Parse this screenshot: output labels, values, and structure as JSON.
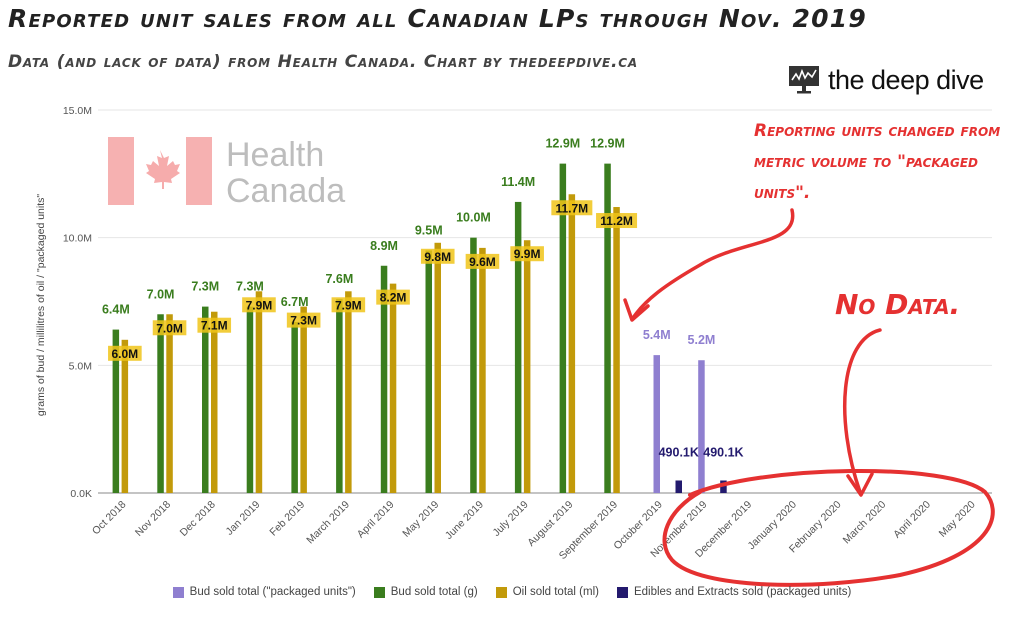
{
  "title": "Reported unit sales from all Canadian LPs through Nov. 2019",
  "subtitle": "Data (and lack of data) from Health Canada. Chart by thedeepdive.ca",
  "logo": {
    "text": "the deep dive",
    "icon": "monitor-chart-icon"
  },
  "watermark": {
    "line1": "Health",
    "line2": "Canada",
    "icon": "maple-leaf-icon"
  },
  "annotations": {
    "reporting_change": "Reporting units changed from metric volume to \"packaged units\".",
    "no_data": "No Data."
  },
  "colors": {
    "packaged_units": "#8f7fd0",
    "bud_g": "#3a7d1e",
    "oil_ml": "#c29a0a",
    "edibles": "#231a6e",
    "annotation": "#e53131",
    "grid": "#e6e6e6"
  },
  "chart_data": {
    "type": "bar",
    "title": "Reported unit sales from all Canadian LPs through Nov. 2019",
    "xlabel": "",
    "ylabel": "grams of bud / millilitres of oil / \"packaged units\"",
    "ylim": [
      0,
      15000000
    ],
    "yticks": [
      "0.0K",
      "5.0M",
      "10.0M",
      "15.0M"
    ],
    "grid": true,
    "legend_position": "bottom",
    "categories": [
      "Oct 2018",
      "Nov 2018",
      "Dec 2018",
      "Jan 2019",
      "Feb 2019",
      "March 2019",
      "April 2019",
      "May 2019",
      "June 2019",
      "July 2019",
      "August 2019",
      "September 2019",
      "October 2019",
      "November 2019",
      "December 2019",
      "January 2020",
      "February 2020",
      "March 2020",
      "April 2020",
      "May 2020"
    ],
    "series": [
      {
        "name": "Bud sold total (\"packaged units\")",
        "values": [
          null,
          null,
          null,
          null,
          null,
          null,
          null,
          null,
          null,
          null,
          null,
          null,
          5400000,
          5200000,
          null,
          null,
          null,
          null,
          null,
          null
        ],
        "labels": [
          "",
          "",
          "",
          "",
          "",
          "",
          "",
          "",
          "",
          "",
          "",
          "",
          "5.4M",
          "5.2M",
          "",
          "",
          "",
          "",
          "",
          ""
        ]
      },
      {
        "name": "Bud sold total (g)",
        "values": [
          6400000,
          7000000,
          7300000,
          7300000,
          6700000,
          7600000,
          8900000,
          9500000,
          10000000,
          11400000,
          12900000,
          12900000,
          null,
          null,
          null,
          null,
          null,
          null,
          null,
          null
        ],
        "labels": [
          "6.4M",
          "7.0M",
          "7.3M",
          "7.3M",
          "6.7M",
          "7.6M",
          "8.9M",
          "9.5M",
          "10.0M",
          "11.4M",
          "12.9M",
          "12.9M",
          "",
          "",
          "",
          "",
          "",
          "",
          "",
          ""
        ]
      },
      {
        "name": "Oil sold total (ml)",
        "values": [
          6000000,
          7000000,
          7100000,
          7900000,
          7300000,
          7900000,
          8200000,
          9800000,
          9600000,
          9900000,
          11700000,
          11200000,
          null,
          null,
          null,
          null,
          null,
          null,
          null,
          null
        ],
        "labels": [
          "6.0M",
          "7.0M",
          "7.1M",
          "7.9M",
          "7.3M",
          "7.9M",
          "8.2M",
          "9.8M",
          "9.6M",
          "9.9M",
          "11.7M",
          "11.2M",
          "",
          "",
          "",
          "",
          "",
          "",
          "",
          ""
        ]
      },
      {
        "name": "Edibles and Extracts sold (packaged units)",
        "values": [
          null,
          null,
          null,
          null,
          null,
          null,
          null,
          null,
          null,
          null,
          null,
          null,
          490100,
          490100,
          null,
          null,
          null,
          null,
          null,
          null
        ],
        "labels": [
          "",
          "",
          "",
          "",
          "",
          "",
          "",
          "",
          "",
          "",
          "",
          "",
          "490.1K",
          "490.1K",
          "",
          "",
          "",
          "",
          "",
          ""
        ]
      }
    ]
  }
}
